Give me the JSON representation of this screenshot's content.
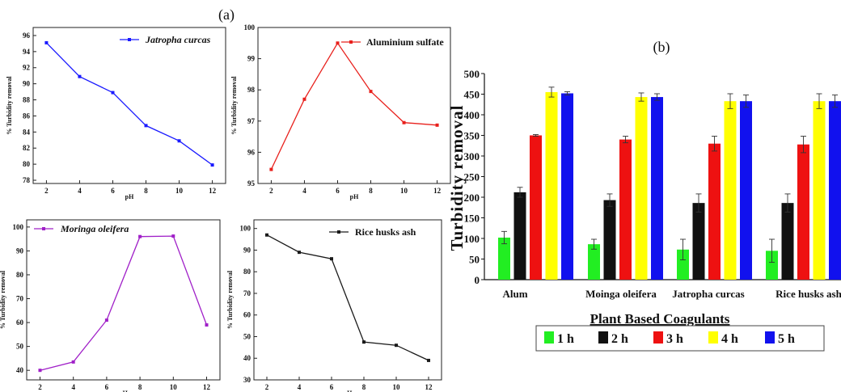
{
  "panel_labels": {
    "a": "(a)",
    "b": "(b)"
  },
  "chart_data": [
    {
      "type": "line",
      "panel": "a1",
      "legend": "Jatropha curcas",
      "color": "#1a1aff",
      "xlabel": "pH",
      "ylabel": "% Turbidity removal",
      "x": [
        2,
        4,
        6,
        8,
        10,
        12
      ],
      "y": [
        95.1,
        90.9,
        88.9,
        84.8,
        82.9,
        79.9
      ],
      "xticks": [
        2,
        4,
        6,
        8,
        10,
        12
      ],
      "yticks": [
        78,
        80,
        82,
        84,
        86,
        88,
        90,
        92,
        94,
        96
      ],
      "xlim": [
        1.2,
        12.8
      ],
      "ylim": [
        77.6,
        97.0
      ]
    },
    {
      "type": "line",
      "panel": "a2",
      "legend": "Aluminium sulfate",
      "color": "#e8201c",
      "xlabel": "pH",
      "ylabel": "% Turbidity removal",
      "x": [
        2,
        4,
        6,
        8,
        10,
        12
      ],
      "y": [
        95.45,
        97.7,
        99.5,
        97.95,
        96.95,
        96.87
      ],
      "xticks": [
        2,
        4,
        6,
        8,
        10,
        12
      ],
      "yticks": [
        95,
        96,
        97,
        98,
        99,
        100
      ],
      "xlim": [
        1.2,
        12.8
      ],
      "ylim": [
        95.0,
        100.0
      ]
    },
    {
      "type": "line",
      "panel": "a3",
      "legend": "Moringa oleifera",
      "color": "#a020c8",
      "xlabel": "pH",
      "ylabel": "% Turbidity removal",
      "x": [
        2,
        4,
        6,
        8,
        10,
        12
      ],
      "y": [
        40,
        43.5,
        61,
        96,
        96.2,
        59
      ],
      "xticks": [
        2,
        4,
        6,
        8,
        10,
        12
      ],
      "yticks": [
        40,
        50,
        60,
        70,
        80,
        90,
        100
      ],
      "xlim": [
        1.2,
        12.8
      ],
      "ylim": [
        36,
        103
      ]
    },
    {
      "type": "line",
      "panel": "a4",
      "legend": "Rice husks ash",
      "color": "#1a1a1a",
      "xlabel": "pH",
      "ylabel": "% Turbidity removal",
      "x": [
        2,
        4,
        6,
        8,
        10,
        12
      ],
      "y": [
        97,
        89,
        86,
        47.5,
        46,
        39
      ],
      "xticks": [
        2,
        4,
        6,
        8,
        10,
        12
      ],
      "yticks": [
        30,
        40,
        50,
        60,
        70,
        80,
        90,
        100
      ],
      "xlim": [
        1.2,
        12.8
      ],
      "ylim": [
        30,
        104
      ]
    },
    {
      "type": "bar",
      "panel": "b",
      "xlabel": "Plant Based Coagulants",
      "ylabel": "Turbidity removal",
      "categories": [
        "Alum",
        "Moinga oleifera",
        "Jatropha curcas",
        "Rice husks ash"
      ],
      "ylim": [
        0,
        500
      ],
      "yticks": [
        0,
        50,
        100,
        150,
        200,
        250,
        300,
        350,
        400,
        450,
        500
      ],
      "legend_position": "bottom",
      "series": [
        {
          "name": "1 h",
          "color": "#22ee22",
          "values": [
            102,
            86,
            73,
            70
          ],
          "errors": [
            15,
            12,
            25,
            28
          ]
        },
        {
          "name": "2 h",
          "color": "#111111",
          "values": [
            212,
            193,
            186,
            186
          ],
          "errors": [
            12,
            15,
            22,
            22
          ]
        },
        {
          "name": "3 h",
          "color": "#ee1111",
          "values": [
            350,
            340,
            330,
            328
          ],
          "errors": [
            2,
            8,
            18,
            20
          ]
        },
        {
          "name": "4 h",
          "color": "#ffff00",
          "values": [
            455,
            443,
            433,
            433
          ],
          "errors": [
            12,
            10,
            18,
            18
          ]
        },
        {
          "name": "5 h",
          "color": "#1111ee",
          "values": [
            452,
            443,
            433,
            433
          ],
          "errors": [
            4,
            8,
            15,
            15
          ]
        }
      ]
    }
  ]
}
